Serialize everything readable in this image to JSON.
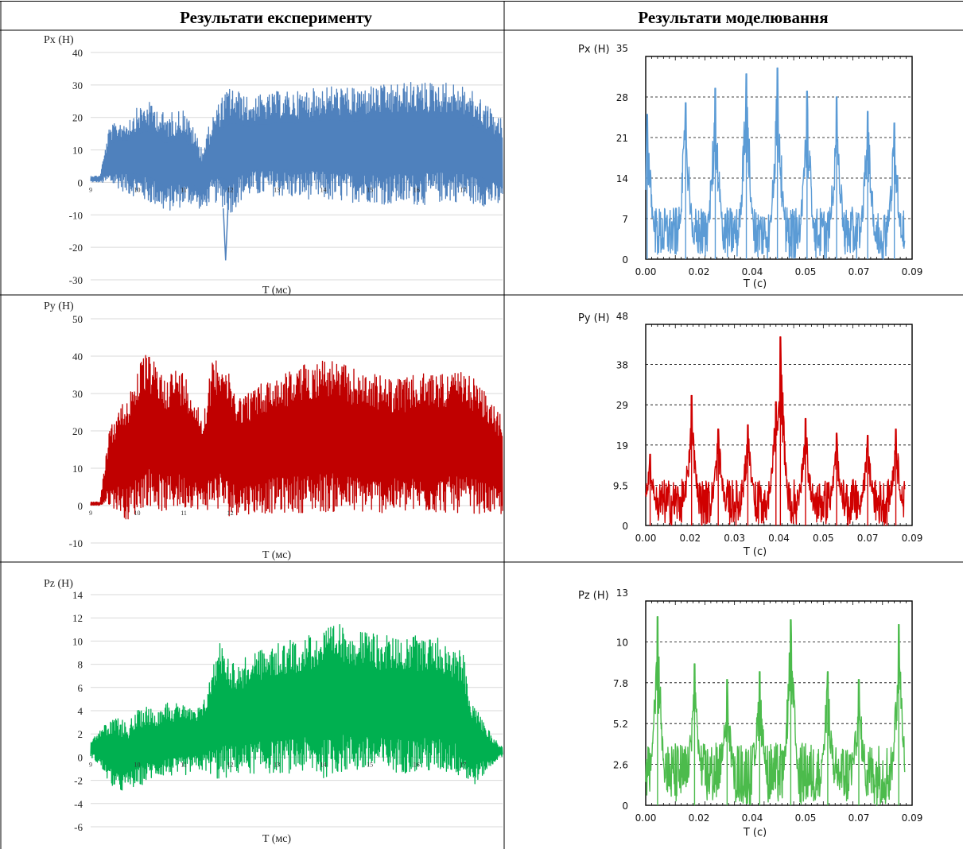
{
  "header": {
    "left": "Результати експерименту",
    "right": "Результати моделювання"
  },
  "colors": {
    "px": "#4f81bd",
    "py": "#c00000",
    "pz": "#00b050",
    "px_sim": "#5b9bd5",
    "py_sim": "#d00000",
    "pz_sim": "#4cbb4c",
    "grid": "#d9d9d9"
  },
  "chart_data": [
    {
      "id": "exp_px",
      "type": "area",
      "ylabel": "Px (H)",
      "xlabel": "T (мс)",
      "ylim": [
        -30,
        40
      ],
      "yticks": [
        "40",
        "30",
        "20",
        "10",
        "0",
        "-10",
        "-20",
        "-30"
      ],
      "xticks": [
        "9",
        "10",
        "11",
        "12",
        "13",
        "14",
        "15",
        "16",
        "17"
      ],
      "grid": true,
      "series": [
        {
          "x": [
            9,
            9.2,
            9.4,
            9.6,
            9.8,
            10,
            10.2,
            10.4,
            10.6,
            10.8,
            11,
            11.2,
            11.4,
            11.6,
            11.8,
            12,
            12.2,
            12.4,
            12.6,
            12.8,
            13,
            13.4,
            13.8,
            14.2,
            14.6,
            15,
            15.4,
            15.8,
            16.2,
            16.6,
            17,
            17.4,
            17.8
          ],
          "upper": [
            2,
            2,
            17,
            19,
            20,
            23,
            25,
            24,
            21,
            22,
            23,
            17,
            11,
            20,
            26,
            30,
            28,
            26,
            27,
            27,
            28,
            28,
            29,
            30,
            29,
            30,
            30,
            31,
            31,
            31,
            30,
            26,
            20
          ],
          "lower": [
            0,
            0,
            -2,
            -3,
            -5,
            -6,
            -8,
            -9,
            -11,
            -10,
            -9,
            -8,
            -10,
            -7,
            -9,
            -12,
            -8,
            -6,
            -6,
            -6,
            -6,
            -7,
            -7,
            -8,
            -8,
            -8,
            -9,
            -9,
            -9,
            -8,
            -8,
            -9,
            -9
          ]
        }
      ],
      "annotations": [
        {
          "x": 11.9,
          "y": -24
        }
      ]
    },
    {
      "id": "exp_py",
      "type": "area",
      "ylabel": "Py (H)",
      "xlabel": "T (мс)",
      "ylim": [
        -10,
        50
      ],
      "yticks": [
        "50",
        "40",
        "30",
        "20",
        "10",
        "0",
        "-10"
      ],
      "xticks": [
        "9",
        "10",
        "11",
        "12"
      ],
      "grid": true,
      "series": [
        {
          "x": [
            9,
            9.2,
            9.4,
            9.6,
            9.8,
            10,
            10.2,
            10.4,
            10.6,
            10.8,
            11,
            11.2,
            11.4,
            11.6,
            11.8,
            12,
            12.2,
            12.4,
            12.8,
            13.2,
            13.6,
            14,
            14.4,
            14.8,
            15.2,
            15.6,
            16,
            16.4,
            16.8,
            17.2,
            17.6,
            17.8
          ],
          "upper": [
            1,
            1,
            20,
            26,
            30,
            37,
            41,
            38,
            35,
            37,
            36,
            31,
            24,
            38,
            42,
            34,
            30,
            31,
            34,
            36,
            38,
            40,
            38,
            36,
            35,
            34,
            35,
            36,
            36,
            35,
            28,
            25
          ],
          "lower": [
            0,
            0,
            -1,
            -3,
            -6,
            -4,
            -2,
            -3,
            -4,
            -3,
            -3,
            -2,
            -3,
            -3,
            -4,
            -5,
            -4,
            -4,
            -4,
            -4,
            -4,
            -4,
            -4,
            -4,
            -4,
            -4,
            -4,
            -4,
            -4,
            -4,
            -4,
            -4
          ]
        }
      ]
    },
    {
      "id": "exp_pz",
      "type": "area",
      "ylabel": "Pz (H)",
      "xlabel": "T (мс)",
      "ylim": [
        -6,
        14
      ],
      "yticks": [
        "14",
        "12",
        "10",
        "8",
        "6",
        "4",
        "2",
        "0",
        "-2",
        "-4",
        "-6"
      ],
      "xticks": [
        "9",
        "10",
        "11",
        "12",
        "13",
        "14",
        "15",
        "16",
        "17"
      ],
      "grid": true,
      "series": [
        {
          "x": [
            9,
            9.2,
            9.4,
            9.6,
            9.8,
            10,
            10.2,
            10.4,
            10.6,
            10.8,
            11,
            11.2,
            11.4,
            11.6,
            11.8,
            12,
            12.2,
            12.4,
            12.8,
            13.2,
            13.6,
            14,
            14.4,
            14.8,
            15.2,
            15.6,
            16,
            16.4,
            16.8,
            17,
            17.2,
            17.4,
            17.6,
            17.8
          ],
          "upper": [
            1.5,
            2.5,
            3,
            3.5,
            3,
            4,
            4.5,
            4,
            5,
            4.5,
            5,
            4,
            4.5,
            7.5,
            10.5,
            8.5,
            8,
            9,
            9.5,
            10,
            10.5,
            11,
            11.5,
            11,
            10.5,
            10.5,
            10.5,
            10.5,
            9.5,
            9,
            5,
            3.5,
            2,
            1
          ],
          "lower": [
            0,
            -1,
            -2.5,
            -3.5,
            -3,
            -3,
            -2.5,
            -2,
            -2,
            -2,
            -2,
            -1.5,
            -1.5,
            -2,
            -3,
            -2,
            -2,
            -2,
            -2,
            -2,
            -2,
            -2.5,
            -2,
            -2,
            -2,
            -2,
            -2,
            -2,
            -2,
            -2.5,
            -3,
            -2,
            -1,
            0
          ]
        }
      ]
    },
    {
      "id": "sim_px",
      "type": "line",
      "ylabel": "Px (H)",
      "xlabel": "T (c)",
      "xlim": [
        0,
        0.09
      ],
      "ylim": [
        0,
        35
      ],
      "yticks": [
        "0",
        "7",
        "14",
        "21",
        "28",
        "35"
      ],
      "xticks": [
        "0.00",
        "0.02",
        "0.04",
        "0.05",
        "0.07",
        "0.09"
      ],
      "grid": true,
      "peaks": [
        {
          "x": 0.0005,
          "y": 25
        },
        {
          "x": 0.0135,
          "y": 27
        },
        {
          "x": 0.0235,
          "y": 29.5
        },
        {
          "x": 0.034,
          "y": 32
        },
        {
          "x": 0.0445,
          "y": 33
        },
        {
          "x": 0.0545,
          "y": 29
        },
        {
          "x": 0.0645,
          "y": 28
        },
        {
          "x": 0.075,
          "y": 25.5
        },
        {
          "x": 0.084,
          "y": 23.5
        }
      ],
      "baseline_range": [
        0,
        9
      ]
    },
    {
      "id": "sim_py",
      "type": "line",
      "ylabel": "Py (H)",
      "xlabel": "T (c)",
      "xlim": [
        0,
        0.09
      ],
      "ylim": [
        0,
        48
      ],
      "yticks": [
        "0",
        "9.5",
        "19",
        "29",
        "38",
        "48"
      ],
      "xticks": [
        "0.00",
        "0.02",
        "0.03",
        "0.04",
        "0.05",
        "0.07",
        "0.09"
      ],
      "grid": true,
      "peaks": [
        {
          "x": 0.0015,
          "y": 17
        },
        {
          "x": 0.0155,
          "y": 31
        },
        {
          "x": 0.0245,
          "y": 23
        },
        {
          "x": 0.0345,
          "y": 24
        },
        {
          "x": 0.044,
          "y": 29.5
        },
        {
          "x": 0.0455,
          "y": 45
        },
        {
          "x": 0.054,
          "y": 25.5
        },
        {
          "x": 0.0645,
          "y": 22
        },
        {
          "x": 0.075,
          "y": 21.5
        },
        {
          "x": 0.0845,
          "y": 23
        }
      ],
      "baseline_range": [
        0,
        11
      ]
    },
    {
      "id": "sim_pz",
      "type": "line",
      "ylabel": "Pz (H)",
      "xlabel": "T (c)",
      "xlim": [
        0,
        0.09
      ],
      "ylim": [
        0,
        13
      ],
      "yticks": [
        "0",
        "2.6",
        "5.2",
        "7.8",
        "10",
        "13"
      ],
      "xticks": [
        "0.00",
        "0.02",
        "0.04",
        "0.05",
        "0.07",
        "0.09"
      ],
      "grid": true,
      "peaks": [
        {
          "x": 0.004,
          "y": 12
        },
        {
          "x": 0.0165,
          "y": 9
        },
        {
          "x": 0.0275,
          "y": 8
        },
        {
          "x": 0.0385,
          "y": 8.5
        },
        {
          "x": 0.049,
          "y": 11.8
        },
        {
          "x": 0.0615,
          "y": 8.5
        },
        {
          "x": 0.072,
          "y": 8
        },
        {
          "x": 0.0855,
          "y": 11.5
        }
      ],
      "baseline_range": [
        0,
        4
      ]
    }
  ]
}
